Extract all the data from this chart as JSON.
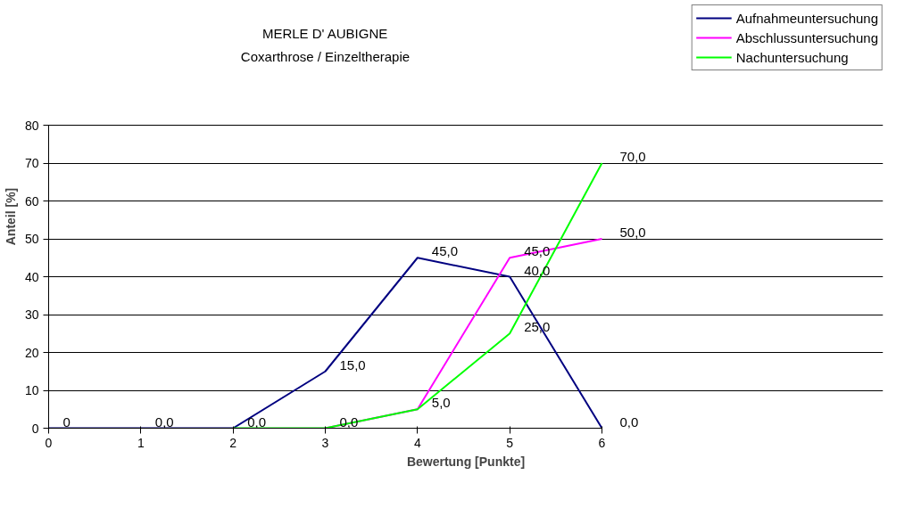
{
  "chart_data": {
    "type": "line",
    "title": "MERLE D' AUBIGNE",
    "subtitle": "Coxarthrose / Einzeltherapie",
    "xlabel": "Bewertung [Punkte]",
    "ylabel": "Anteil [%]",
    "x": [
      0,
      1,
      2,
      3,
      4,
      5,
      6
    ],
    "series": [
      {
        "name": "Aufnahmeuntersuchung",
        "color": "#000080",
        "values": [
          0,
          0,
          0,
          15,
          45,
          40,
          0
        ],
        "value_labels": [
          "0",
          "0,0",
          "0,0",
          "15,0",
          "45,0",
          "40,0",
          "0,0"
        ]
      },
      {
        "name": "Abschlussuntersuchung",
        "color": "#ff00ff",
        "x": [
          3,
          4,
          5,
          6
        ],
        "values": [
          0,
          5,
          45,
          50
        ],
        "value_labels": [
          "0,0",
          null,
          "45,0",
          "50,0"
        ]
      },
      {
        "name": "Nachuntersuchung",
        "color": "#00ff00",
        "x": [
          2,
          3,
          4,
          5,
          6
        ],
        "values": [
          0,
          0,
          5,
          25,
          70
        ],
        "value_labels": [
          null,
          null,
          "5,0",
          "25,0",
          "70,0"
        ]
      }
    ],
    "xlim": [
      0,
      6
    ],
    "ylim": [
      0,
      80
    ],
    "xticks": [
      0,
      1,
      2,
      3,
      4,
      5,
      6
    ],
    "yticks": [
      0,
      10,
      20,
      30,
      40,
      50,
      60,
      70,
      80
    ],
    "grid": "y",
    "legend": "top right",
    "marker": "none",
    "line_style": "solid"
  }
}
